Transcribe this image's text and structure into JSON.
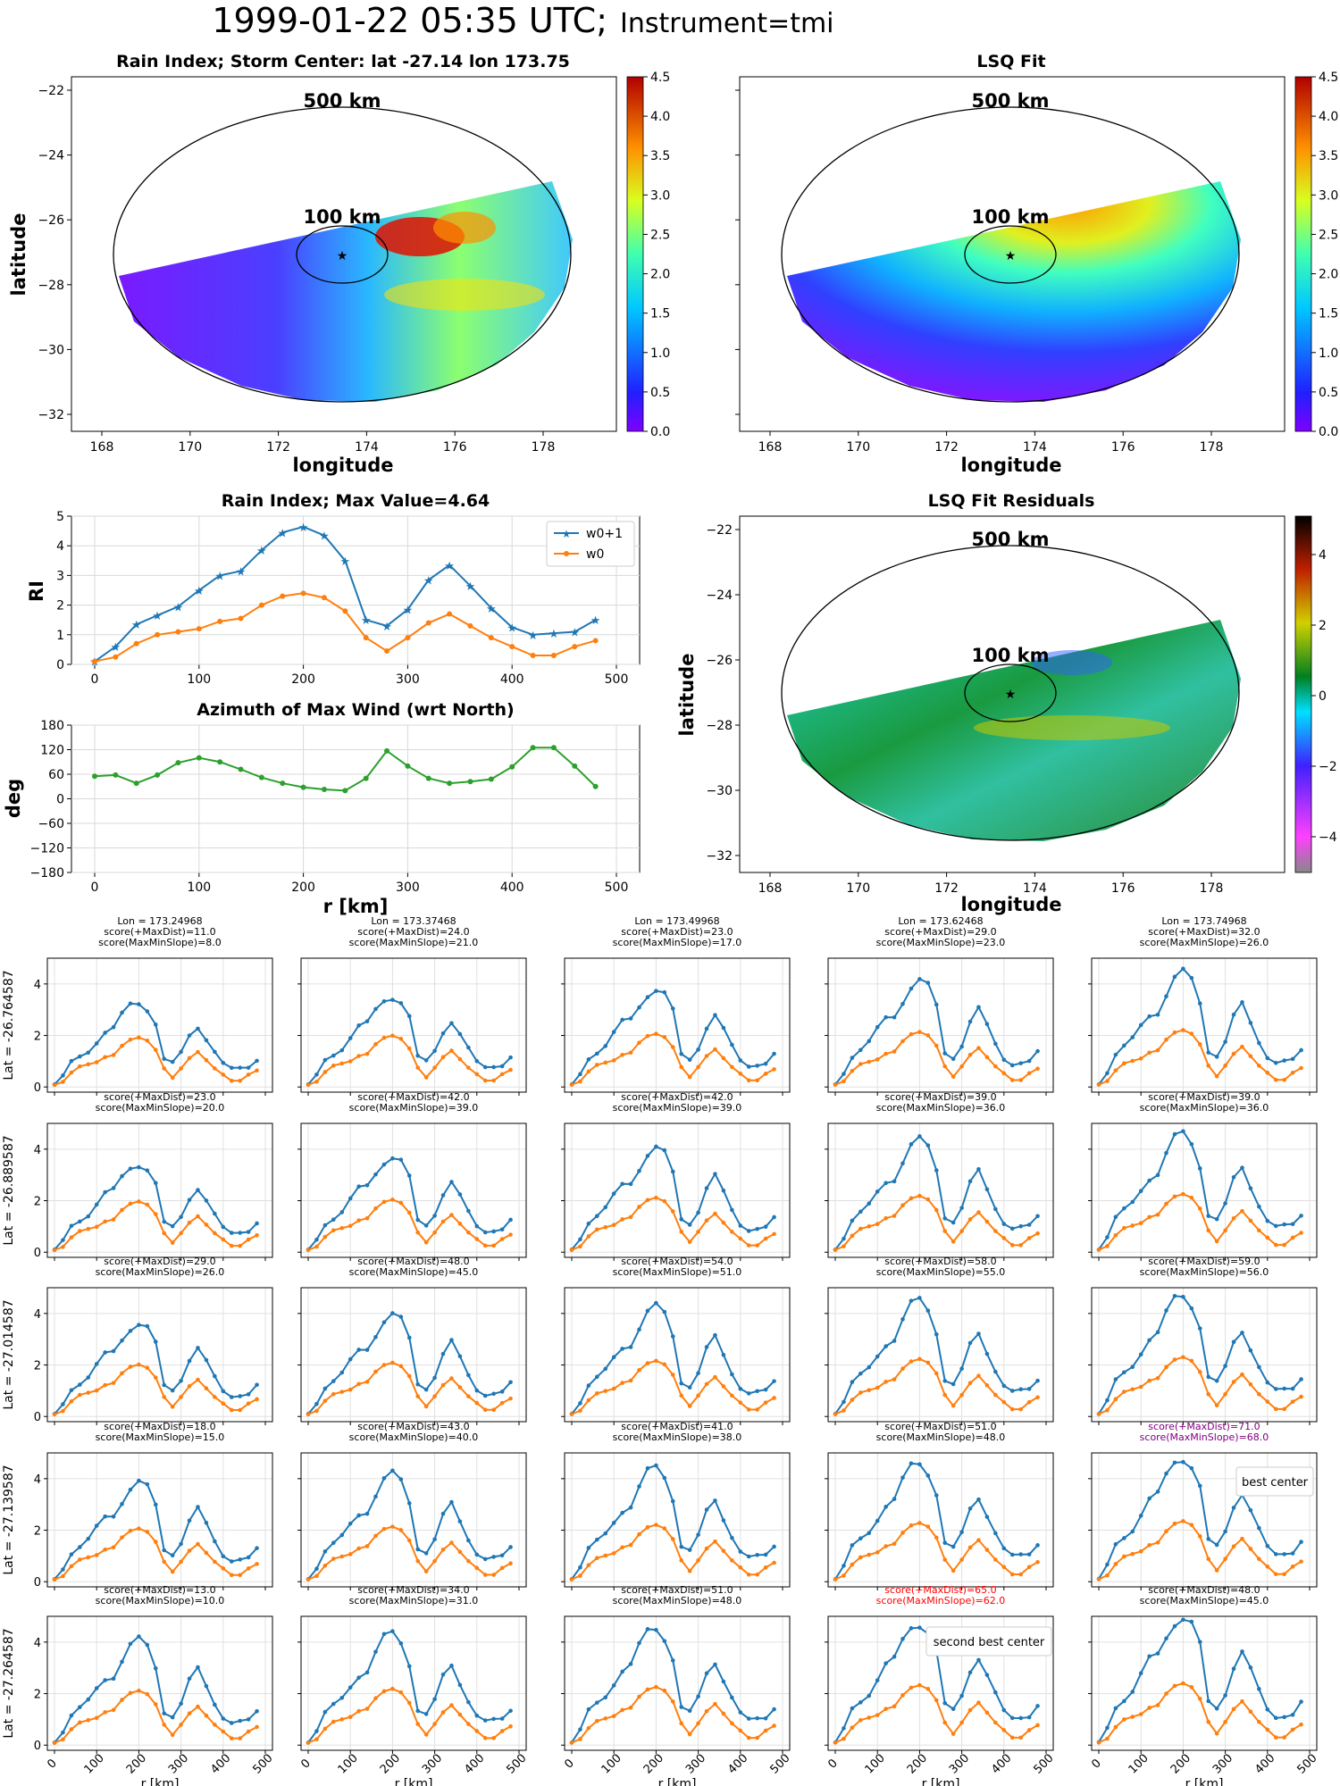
{
  "suptitle": {
    "main": "1999-01-22 05:35 UTC;",
    "instrument": "Instrument=tmi"
  },
  "colors": {
    "w0p1": "#1f77b4",
    "w0": "#ff7f0e",
    "azimuth": "#2ca02c",
    "grid": "#d9d9d9",
    "best": "#800080",
    "second": "#ff0000"
  },
  "maps": {
    "ri_map": {
      "title": "Rain Index; Storm Center: lat -27.14 lon 173.75",
      "xlabel": "longitude",
      "ylabel": "latitude",
      "xticks": [
        "168",
        "170",
        "172",
        "174",
        "176",
        "178"
      ],
      "yticks": [
        "−22",
        "−24",
        "−26",
        "−28",
        "−30",
        "−32"
      ],
      "ring_500": "500 km",
      "ring_100": "100 km",
      "colorbar_ticks": [
        "4.5",
        "4.0",
        "3.5",
        "3.0",
        "2.5",
        "2.0",
        "1.5",
        "1.0",
        "0.5",
        "0.0"
      ],
      "colormap": "jet"
    },
    "lsq_map": {
      "title": "LSQ Fit",
      "xticks": [
        "168",
        "170",
        "172",
        "174",
        "176",
        "178"
      ],
      "ring_500": "500 km",
      "ring_100": "100 km",
      "colorbar_ticks": [
        "4.5",
        "4.0",
        "3.5",
        "3.0",
        "2.5",
        "2.0",
        "1.5",
        "1.0",
        "0.5",
        "0.0"
      ],
      "colormap": "jet"
    },
    "residual_map": {
      "title": "LSQ Fit Residuals",
      "xlabel": "longitude",
      "ylabel": "latitude",
      "xticks": [
        "168",
        "170",
        "172",
        "174",
        "176",
        "178"
      ],
      "yticks": [
        "−22",
        "−24",
        "−26",
        "−28",
        "−30",
        "−32"
      ],
      "ring_500": "500 km",
      "ring_100": "100 km",
      "colorbar_ticks": [
        "4",
        "2",
        "0",
        "−2",
        "−4"
      ],
      "colormap": "diverging"
    }
  },
  "chart_data": [
    {
      "id": "rain_index",
      "type": "line",
      "title": "Rain Index; Max Value=4.64",
      "xlabel": "",
      "ylabel": "RI",
      "xlim": [
        0,
        500
      ],
      "ylim": [
        0,
        5
      ],
      "xticks": [
        "0",
        "100",
        "200",
        "300",
        "400",
        "500"
      ],
      "yticks": [
        "0",
        "1",
        "2",
        "3",
        "4",
        "5"
      ],
      "legend_position": "top-right",
      "grid": true,
      "x": [
        0,
        20,
        40,
        60,
        80,
        100,
        120,
        140,
        160,
        180,
        200,
        220,
        240,
        260,
        280,
        300,
        320,
        340,
        360,
        380,
        400,
        420,
        440,
        460,
        480
      ],
      "series": [
        {
          "name": "w0+1",
          "marker": "star",
          "values": [
            0.1,
            0.6,
            1.35,
            1.65,
            1.95,
            2.5,
            3.0,
            3.15,
            3.85,
            4.45,
            4.64,
            4.35,
            3.5,
            1.5,
            1.3,
            1.85,
            2.85,
            3.35,
            2.65,
            1.9,
            1.25,
            1.0,
            1.05,
            1.1,
            1.5
          ]
        },
        {
          "name": "w0",
          "marker": "dot",
          "values": [
            0.1,
            0.25,
            0.7,
            1.0,
            1.1,
            1.2,
            1.45,
            1.55,
            2.0,
            2.3,
            2.4,
            2.25,
            1.8,
            0.9,
            0.45,
            0.9,
            1.4,
            1.7,
            1.3,
            0.9,
            0.6,
            0.3,
            0.3,
            0.6,
            0.8
          ]
        }
      ]
    },
    {
      "id": "azimuth",
      "type": "line",
      "title": "Azimuth of Max Wind (wrt North)",
      "xlabel": "r [km]",
      "ylabel": "deg",
      "xlim": [
        0,
        500
      ],
      "ylim": [
        -180,
        180
      ],
      "xticks": [
        "0",
        "100",
        "200",
        "300",
        "400",
        "500"
      ],
      "yticks": [
        "180",
        "120",
        "60",
        "0",
        "−60",
        "−120",
        "−180"
      ],
      "grid": true,
      "x": [
        0,
        20,
        40,
        60,
        80,
        100,
        120,
        140,
        160,
        180,
        200,
        220,
        240,
        260,
        280,
        300,
        320,
        340,
        360,
        380,
        400,
        420,
        440,
        460,
        480
      ],
      "series": [
        {
          "values": [
            55,
            58,
            38,
            58,
            88,
            100,
            90,
            72,
            52,
            38,
            28,
            23,
            20,
            50,
            117,
            80,
            50,
            38,
            42,
            48,
            78,
            125,
            125,
            80,
            30
          ]
        }
      ]
    }
  ],
  "grid_panels": {
    "xlabel": "r [km]",
    "xticks": [
      "0",
      "100",
      "200",
      "300",
      "400",
      "500"
    ],
    "yticks": [
      "0",
      "2",
      "4"
    ],
    "lon_labels": [
      "Lon = 173.24968",
      "Lon = 173.37468",
      "Lon = 173.49968",
      "Lon = 173.62468",
      "Lon = 173.74968"
    ],
    "lat_labels": [
      "Lat = -26.764587",
      "Lat = -26.889587",
      "Lat = -27.014587",
      "Lat = -27.139587",
      "Lat = -27.264587"
    ],
    "annotations": {
      "best": "best center",
      "second": "second best center"
    },
    "scores": [
      [
        [
          "score(+MaxDist)=11.0",
          "score(MaxMinSlope)=8.0"
        ],
        [
          "score(+MaxDist)=24.0",
          "score(MaxMinSlope)=21.0"
        ],
        [
          "score(+MaxDist)=23.0",
          "score(MaxMinSlope)=17.0"
        ],
        [
          "score(+MaxDist)=29.0",
          "score(MaxMinSlope)=23.0"
        ],
        [
          "score(+MaxDist)=32.0",
          "score(MaxMinSlope)=26.0"
        ]
      ],
      [
        [
          "score(+MaxDist)=23.0",
          "score(MaxMinSlope)=20.0"
        ],
        [
          "score(+MaxDist)=42.0",
          "score(MaxMinSlope)=39.0"
        ],
        [
          "score(+MaxDist)=42.0",
          "score(MaxMinSlope)=39.0"
        ],
        [
          "score(+MaxDist)=39.0",
          "score(MaxMinSlope)=36.0"
        ],
        [
          "score(+MaxDist)=39.0",
          "score(MaxMinSlope)=36.0"
        ]
      ],
      [
        [
          "score(+MaxDist)=29.0",
          "score(MaxMinSlope)=26.0"
        ],
        [
          "score(+MaxDist)=48.0",
          "score(MaxMinSlope)=45.0"
        ],
        [
          "score(+MaxDist)=54.0",
          "score(MaxMinSlope)=51.0"
        ],
        [
          "score(+MaxDist)=58.0",
          "score(MaxMinSlope)=55.0"
        ],
        [
          "score(+MaxDist)=59.0",
          "score(MaxMinSlope)=56.0"
        ]
      ],
      [
        [
          "score(+MaxDist)=18.0",
          "score(MaxMinSlope)=15.0"
        ],
        [
          "score(+MaxDist)=43.0",
          "score(MaxMinSlope)=40.0"
        ],
        [
          "score(+MaxDist)=41.0",
          "score(MaxMinSlope)=38.0"
        ],
        [
          "score(+MaxDist)=51.0",
          "score(MaxMinSlope)=48.0"
        ],
        [
          "score(+MaxDist)=71.0",
          "score(MaxMinSlope)=68.0"
        ]
      ],
      [
        [
          "score(+MaxDist)=13.0",
          "score(MaxMinSlope)=10.0"
        ],
        [
          "score(+MaxDist)=34.0",
          "score(MaxMinSlope)=31.0"
        ],
        [
          "score(+MaxDist)=51.0",
          "score(MaxMinSlope)=48.0"
        ],
        [
          "score(+MaxDist)=65.0",
          "score(MaxMinSlope)=62.0"
        ],
        [
          "score(+MaxDist)=48.0",
          "score(MaxMinSlope)=45.0"
        ]
      ]
    ]
  }
}
